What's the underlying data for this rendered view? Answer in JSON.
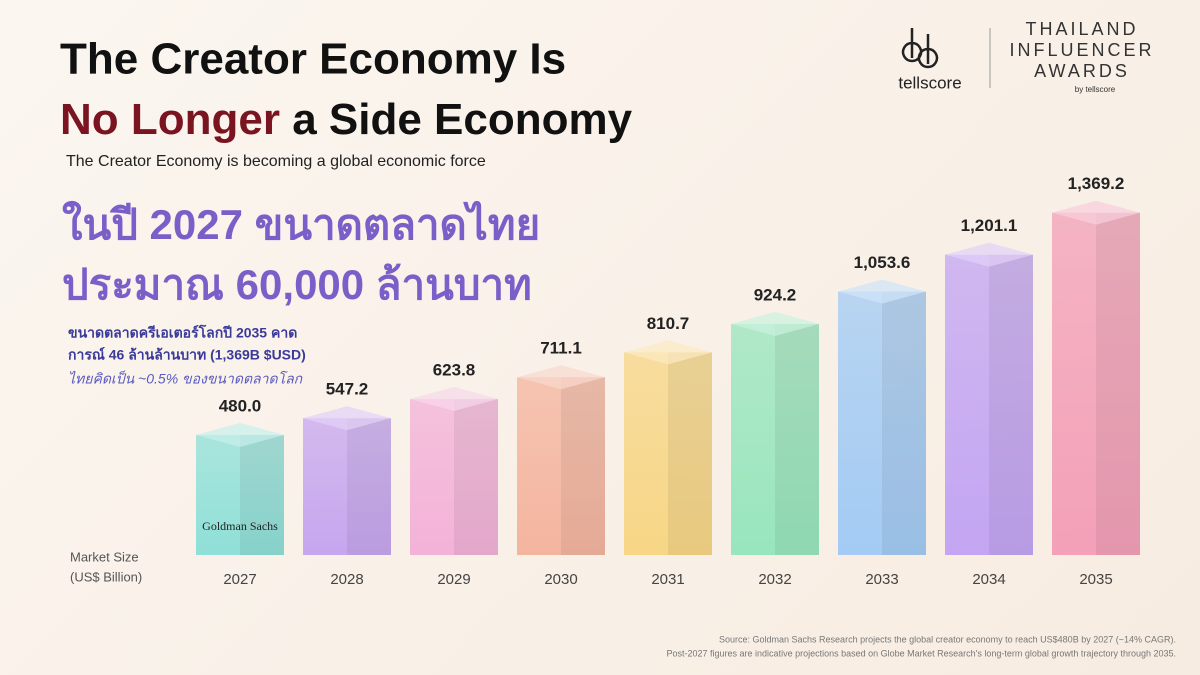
{
  "header": {
    "title_line1": "The Creator Economy Is",
    "title_line2_highlight": "No Longer",
    "title_line2_rest": "a Side Economy",
    "subtitle": "The Creator Economy is becoming a global economic force"
  },
  "thai_headline": [
    "ในปี 2027 ขนาดตลาดไทย",
    "ประมาณ 60,000 ล้านบาท"
  ],
  "notes": [
    "ขนาดตลาดครีเอเตอร์โลกปี 2035 คาด",
    "การณ์ 46 ล้านล้านบาท (1,369B $USD)",
    "ไทยคิดเป็น ~0.5% ของขนาดตลาดโลก"
  ],
  "logos": {
    "tellscore": "tellscore",
    "awards": [
      "THAILAND",
      "INFLUENCER",
      "AWARDS"
    ],
    "awards_by": "by tellscore"
  },
  "chart_data": {
    "type": "bar",
    "y_label": [
      "Market Size",
      "(US$ Billion)"
    ],
    "categories": [
      "2027",
      "2028",
      "2029",
      "2030",
      "2031",
      "2032",
      "2033",
      "2034",
      "2035"
    ],
    "values": [
      480.0,
      547.2,
      623.8,
      711.1,
      810.7,
      924.2,
      1053.6,
      1201.1,
      1369.2
    ],
    "value_labels": [
      "480.0",
      "547.2",
      "623.8",
      "711.1",
      "810.7",
      "924.2",
      "1,053.6",
      "1,201.1",
      "1,369.2"
    ],
    "colors": [
      "#8fe0d8",
      "#c6a6ef",
      "#f3b2d8",
      "#f4b59f",
      "#f7d686",
      "#98e6bd",
      "#a3cbf4",
      "#c3a5f3",
      "#f3a0b8"
    ],
    "bar_annotation": "Goldman Sachs"
  },
  "source": [
    "Source: Goldman Sachs Research projects the global creator economy to reach US$480B by 2027 (~14% CAGR).",
    "Post-2027 figures are indicative projections based on Globe Market Research's long-term global growth trajectory through 2035."
  ]
}
